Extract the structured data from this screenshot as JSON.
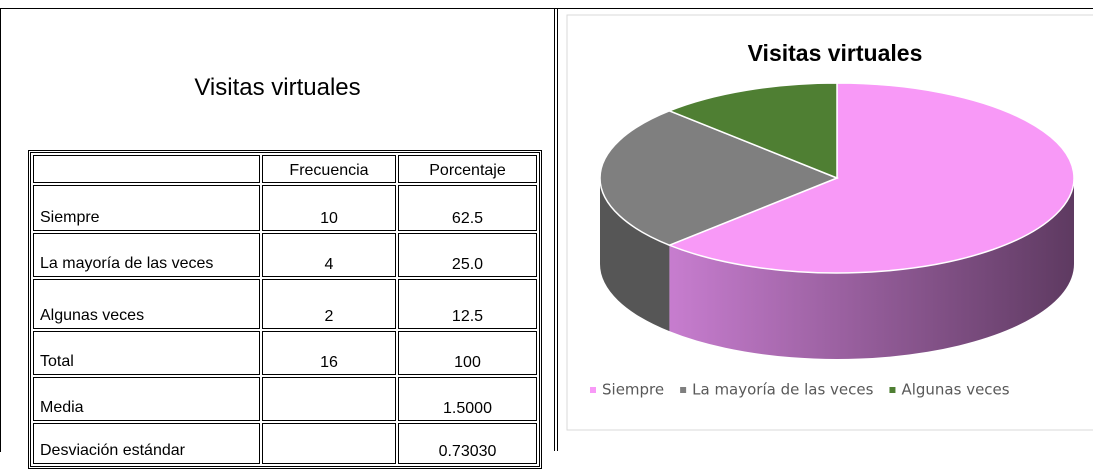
{
  "table": {
    "title": "Visitas virtuales",
    "headers": [
      "Frecuencia",
      "Porcentaje"
    ],
    "rows": [
      {
        "label": "Siempre",
        "frecuencia": "10",
        "porcentaje": "62.5"
      },
      {
        "label": "La mayoría de las veces",
        "frecuencia": "4",
        "porcentaje": "25.0"
      },
      {
        "label": "Algunas veces",
        "frecuencia": "2",
        "porcentaje": "12.5"
      },
      {
        "label": "Total",
        "frecuencia": "16",
        "porcentaje": "100"
      },
      {
        "label": "Media",
        "porcentaje": "1.5000"
      },
      {
        "label": "Desviación estándar",
        "porcentaje": "0.73030"
      }
    ]
  },
  "chart_data": {
    "type": "pie",
    "title": "Visitas virtuales",
    "categories": [
      "Siempre",
      "La mayoría de las veces",
      "Algunas veces"
    ],
    "values": [
      62.5,
      25,
      12.5
    ],
    "colors": [
      "#f899f7",
      "#7f7f7f",
      "#4f7f33"
    ],
    "side_colors": [
      [
        "#c77dcf",
        "#5e3a61"
      ],
      [
        "#565656",
        "#565656"
      ],
      [
        "#355a22",
        "#355a22"
      ]
    ],
    "legend": "bottom",
    "three_d": true
  }
}
